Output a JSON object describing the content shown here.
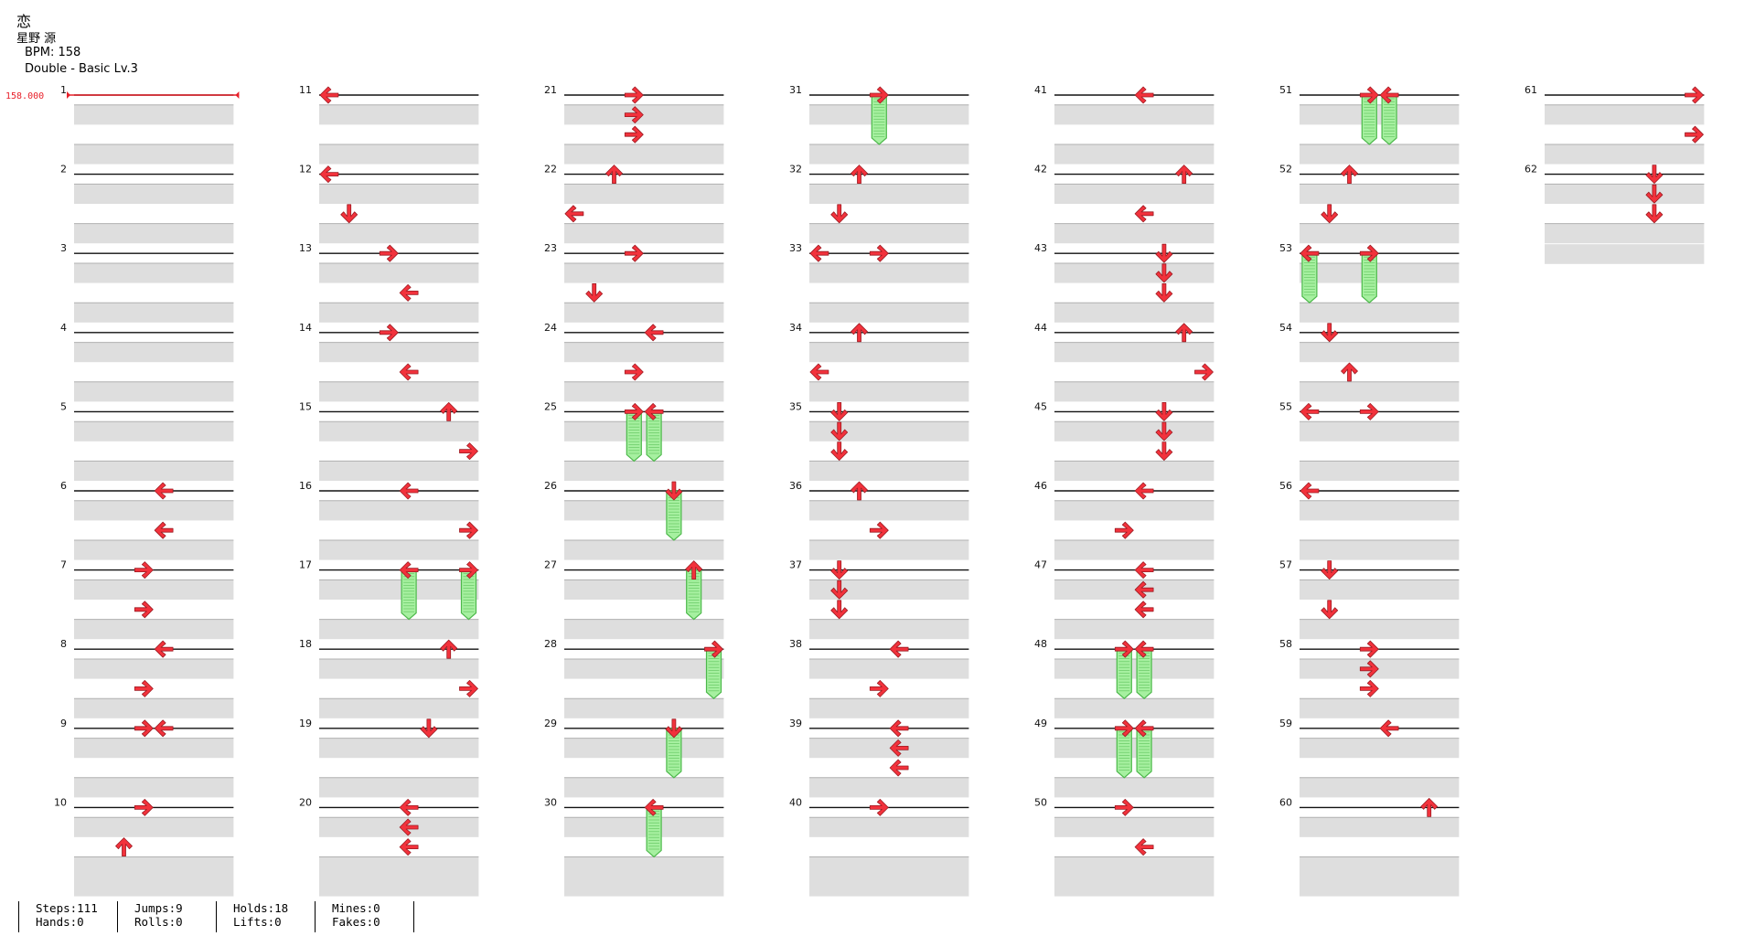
{
  "song": {
    "title": "恋",
    "artist": "星野 源",
    "bpm_label": "BPM: 158",
    "chart_label": "Double - Basic Lv.3"
  },
  "bpm_marker": "158.000",
  "measures": [
    {
      "n": 1,
      "notes": []
    },
    {
      "n": 2,
      "notes": []
    },
    {
      "n": 3,
      "notes": []
    },
    {
      "n": 4,
      "notes": []
    },
    {
      "n": 5,
      "notes": []
    },
    {
      "n": 6,
      "notes": [
        {
          "col": 4,
          "dir": "left",
          "beat": 0
        },
        {
          "col": 4,
          "dir": "left",
          "beat": 2
        }
      ]
    },
    {
      "n": 7,
      "notes": [
        {
          "col": 3,
          "dir": "right",
          "beat": 0
        },
        {
          "col": 3,
          "dir": "right",
          "beat": 2
        }
      ]
    },
    {
      "n": 8,
      "notes": [
        {
          "col": 4,
          "dir": "left",
          "beat": 0
        },
        {
          "col": 3,
          "dir": "right",
          "beat": 2
        }
      ]
    },
    {
      "n": 9,
      "notes": [
        {
          "col": 3,
          "dir": "right",
          "beat": 0
        },
        {
          "col": 4,
          "dir": "left",
          "beat": 0
        }
      ]
    },
    {
      "n": 10,
      "notes": [
        {
          "col": 3,
          "dir": "right",
          "beat": 0
        },
        {
          "col": 2,
          "dir": "up",
          "beat": 2
        }
      ]
    },
    {
      "n": 11,
      "notes": [
        {
          "col": 0,
          "dir": "left",
          "beat": 0
        }
      ]
    },
    {
      "n": 12,
      "notes": [
        {
          "col": 0,
          "dir": "left",
          "beat": 0
        },
        {
          "col": 1,
          "dir": "down",
          "beat": 2
        }
      ]
    },
    {
      "n": 13,
      "notes": [
        {
          "col": 3,
          "dir": "right",
          "beat": 0
        },
        {
          "col": 4,
          "dir": "left",
          "beat": 2
        }
      ]
    },
    {
      "n": 14,
      "notes": [
        {
          "col": 3,
          "dir": "right",
          "beat": 0
        },
        {
          "col": 4,
          "dir": "left",
          "beat": 2
        }
      ]
    },
    {
      "n": 15,
      "notes": [
        {
          "col": 6,
          "dir": "up",
          "beat": 0
        },
        {
          "col": 7,
          "dir": "right",
          "beat": 2
        }
      ]
    },
    {
      "n": 16,
      "notes": [
        {
          "col": 4,
          "dir": "left",
          "beat": 0
        },
        {
          "col": 7,
          "dir": "right",
          "beat": 2
        }
      ]
    },
    {
      "n": 17,
      "notes": [
        {
          "col": 4,
          "dir": "left",
          "beat": 0,
          "hold": 2.5
        },
        {
          "col": 7,
          "dir": "right",
          "beat": 0,
          "hold": 2.5
        }
      ]
    },
    {
      "n": 18,
      "notes": [
        {
          "col": 6,
          "dir": "up",
          "beat": 0
        },
        {
          "col": 7,
          "dir": "right",
          "beat": 2
        }
      ]
    },
    {
      "n": 19,
      "notes": [
        {
          "col": 5,
          "dir": "down",
          "beat": 0
        }
      ]
    },
    {
      "n": 20,
      "notes": [
        {
          "col": 4,
          "dir": "left",
          "beat": 0
        },
        {
          "col": 4,
          "dir": "left",
          "beat": 1
        },
        {
          "col": 4,
          "dir": "left",
          "beat": 2
        }
      ]
    },
    {
      "n": 21,
      "notes": [
        {
          "col": 3,
          "dir": "right",
          "beat": 0
        },
        {
          "col": 3,
          "dir": "right",
          "beat": 1
        },
        {
          "col": 3,
          "dir": "right",
          "beat": 2
        }
      ]
    },
    {
      "n": 22,
      "notes": [
        {
          "col": 2,
          "dir": "up",
          "beat": 0
        },
        {
          "col": 0,
          "dir": "left",
          "beat": 2
        }
      ]
    },
    {
      "n": 23,
      "notes": [
        {
          "col": 3,
          "dir": "right",
          "beat": 0
        },
        {
          "col": 1,
          "dir": "down",
          "beat": 2
        }
      ]
    },
    {
      "n": 24,
      "notes": [
        {
          "col": 4,
          "dir": "left",
          "beat": 0
        },
        {
          "col": 3,
          "dir": "right",
          "beat": 2
        }
      ]
    },
    {
      "n": 25,
      "notes": [
        {
          "col": 3,
          "dir": "right",
          "beat": 0,
          "hold": 2.5
        },
        {
          "col": 4,
          "dir": "left",
          "beat": 0,
          "hold": 2.5
        }
      ]
    },
    {
      "n": 26,
      "notes": [
        {
          "col": 5,
          "dir": "down",
          "beat": 0,
          "hold": 2.5
        }
      ]
    },
    {
      "n": 27,
      "notes": [
        {
          "col": 6,
          "dir": "up",
          "beat": 0,
          "hold": 2.5
        }
      ]
    },
    {
      "n": 28,
      "notes": [
        {
          "col": 7,
          "dir": "right",
          "beat": 0,
          "hold": 2.5
        }
      ]
    },
    {
      "n": 29,
      "notes": [
        {
          "col": 5,
          "dir": "down",
          "beat": 0,
          "hold": 2.5
        }
      ]
    },
    {
      "n": 30,
      "notes": [
        {
          "col": 4,
          "dir": "left",
          "beat": 0,
          "hold": 2.5
        }
      ]
    },
    {
      "n": 31,
      "notes": [
        {
          "col": 3,
          "dir": "right",
          "beat": 0,
          "hold": 2.5
        }
      ]
    },
    {
      "n": 32,
      "notes": [
        {
          "col": 2,
          "dir": "up",
          "beat": 0
        },
        {
          "col": 1,
          "dir": "down",
          "beat": 2
        }
      ]
    },
    {
      "n": 33,
      "notes": [
        {
          "col": 0,
          "dir": "left",
          "beat": 0
        },
        {
          "col": 3,
          "dir": "right",
          "beat": 0
        }
      ]
    },
    {
      "n": 34,
      "notes": [
        {
          "col": 2,
          "dir": "up",
          "beat": 0
        },
        {
          "col": 0,
          "dir": "left",
          "beat": 2
        }
      ]
    },
    {
      "n": 35,
      "notes": [
        {
          "col": 1,
          "dir": "down",
          "beat": 0
        },
        {
          "col": 1,
          "dir": "down",
          "beat": 1
        },
        {
          "col": 1,
          "dir": "down",
          "beat": 2
        }
      ]
    },
    {
      "n": 36,
      "notes": [
        {
          "col": 2,
          "dir": "up",
          "beat": 0
        },
        {
          "col": 3,
          "dir": "right",
          "beat": 2
        }
      ]
    },
    {
      "n": 37,
      "notes": [
        {
          "col": 1,
          "dir": "down",
          "beat": 0
        },
        {
          "col": 1,
          "dir": "down",
          "beat": 1
        },
        {
          "col": 1,
          "dir": "down",
          "beat": 2
        }
      ]
    },
    {
      "n": 38,
      "notes": [
        {
          "col": 4,
          "dir": "left",
          "beat": 0
        },
        {
          "col": 3,
          "dir": "right",
          "beat": 2
        }
      ]
    },
    {
      "n": 39,
      "notes": [
        {
          "col": 4,
          "dir": "left",
          "beat": 0
        },
        {
          "col": 4,
          "dir": "left",
          "beat": 1
        },
        {
          "col": 4,
          "dir": "left",
          "beat": 2
        }
      ]
    },
    {
      "n": 40,
      "notes": [
        {
          "col": 3,
          "dir": "right",
          "beat": 0
        }
      ]
    },
    {
      "n": 41,
      "notes": [
        {
          "col": 4,
          "dir": "left",
          "beat": 0
        }
      ]
    },
    {
      "n": 42,
      "notes": [
        {
          "col": 6,
          "dir": "up",
          "beat": 0
        },
        {
          "col": 4,
          "dir": "left",
          "beat": 2
        }
      ]
    },
    {
      "n": 43,
      "notes": [
        {
          "col": 5,
          "dir": "down",
          "beat": 0
        },
        {
          "col": 5,
          "dir": "down",
          "beat": 1
        },
        {
          "col": 5,
          "dir": "down",
          "beat": 2
        }
      ]
    },
    {
      "n": 44,
      "notes": [
        {
          "col": 6,
          "dir": "up",
          "beat": 0
        },
        {
          "col": 7,
          "dir": "right",
          "beat": 2
        }
      ]
    },
    {
      "n": 45,
      "notes": [
        {
          "col": 5,
          "dir": "down",
          "beat": 0
        },
        {
          "col": 5,
          "dir": "down",
          "beat": 1
        },
        {
          "col": 5,
          "dir": "down",
          "beat": 2
        }
      ]
    },
    {
      "n": 46,
      "notes": [
        {
          "col": 4,
          "dir": "left",
          "beat": 0
        },
        {
          "col": 3,
          "dir": "right",
          "beat": 2
        }
      ]
    },
    {
      "n": 47,
      "notes": [
        {
          "col": 4,
          "dir": "left",
          "beat": 0
        },
        {
          "col": 4,
          "dir": "left",
          "beat": 1
        },
        {
          "col": 4,
          "dir": "left",
          "beat": 2
        }
      ]
    },
    {
      "n": 48,
      "notes": [
        {
          "col": 3,
          "dir": "right",
          "beat": 0,
          "hold": 2.5
        },
        {
          "col": 4,
          "dir": "left",
          "beat": 0,
          "hold": 2.5
        }
      ]
    },
    {
      "n": 49,
      "notes": [
        {
          "col": 3,
          "dir": "right",
          "beat": 0,
          "hold": 2.5
        },
        {
          "col": 4,
          "dir": "left",
          "beat": 0,
          "hold": 2.5
        }
      ]
    },
    {
      "n": 50,
      "notes": [
        {
          "col": 3,
          "dir": "right",
          "beat": 0
        },
        {
          "col": 4,
          "dir": "left",
          "beat": 2
        }
      ]
    },
    {
      "n": 51,
      "notes": [
        {
          "col": 3,
          "dir": "right",
          "beat": 0,
          "hold": 2.5
        },
        {
          "col": 4,
          "dir": "left",
          "beat": 0,
          "hold": 2.5
        }
      ]
    },
    {
      "n": 52,
      "notes": [
        {
          "col": 2,
          "dir": "up",
          "beat": 0
        },
        {
          "col": 1,
          "dir": "down",
          "beat": 2
        }
      ]
    },
    {
      "n": 53,
      "notes": [
        {
          "col": 0,
          "dir": "left",
          "beat": 0,
          "hold": 2.5
        },
        {
          "col": 3,
          "dir": "right",
          "beat": 0,
          "hold": 2.5
        }
      ]
    },
    {
      "n": 54,
      "notes": [
        {
          "col": 1,
          "dir": "down",
          "beat": 0
        },
        {
          "col": 2,
          "dir": "up",
          "beat": 2
        }
      ]
    },
    {
      "n": 55,
      "notes": [
        {
          "col": 0,
          "dir": "left",
          "beat": 0
        },
        {
          "col": 3,
          "dir": "right",
          "beat": 0
        }
      ]
    },
    {
      "n": 56,
      "notes": [
        {
          "col": 0,
          "dir": "left",
          "beat": 0
        }
      ]
    },
    {
      "n": 57,
      "notes": [
        {
          "col": 1,
          "dir": "down",
          "beat": 0
        },
        {
          "col": 1,
          "dir": "down",
          "beat": 2
        }
      ]
    },
    {
      "n": 58,
      "notes": [
        {
          "col": 3,
          "dir": "right",
          "beat": 0
        },
        {
          "col": 3,
          "dir": "right",
          "beat": 1
        },
        {
          "col": 3,
          "dir": "right",
          "beat": 2
        }
      ]
    },
    {
      "n": 59,
      "notes": [
        {
          "col": 4,
          "dir": "left",
          "beat": 0
        }
      ]
    },
    {
      "n": 60,
      "notes": [
        {
          "col": 6,
          "dir": "up",
          "beat": 0
        }
      ]
    },
    {
      "n": 61,
      "notes": [
        {
          "col": 7,
          "dir": "right",
          "beat": 0
        },
        {
          "col": 7,
          "dir": "right",
          "beat": 2
        }
      ]
    },
    {
      "n": 62,
      "notes": [
        {
          "col": 5,
          "dir": "down",
          "beat": 0
        },
        {
          "col": 5,
          "dir": "down",
          "beat": 1
        },
        {
          "col": 5,
          "dir": "down",
          "beat": 2
        }
      ]
    }
  ],
  "stats": [
    {
      "top": "Steps:111",
      "bottom": "Hands:0"
    },
    {
      "top": "Jumps:9",
      "bottom": "Rolls:0"
    },
    {
      "top": "Holds:18",
      "bottom": "Lifts:0"
    },
    {
      "top": "Mines:0",
      "bottom": "Fakes:0"
    }
  ],
  "colors": {
    "arrow": "#f2323c",
    "hold_fill": "#a6f0a0",
    "hold_stroke": "#4cb84a",
    "band": "#dedede",
    "bpm": "#e8202a"
  }
}
